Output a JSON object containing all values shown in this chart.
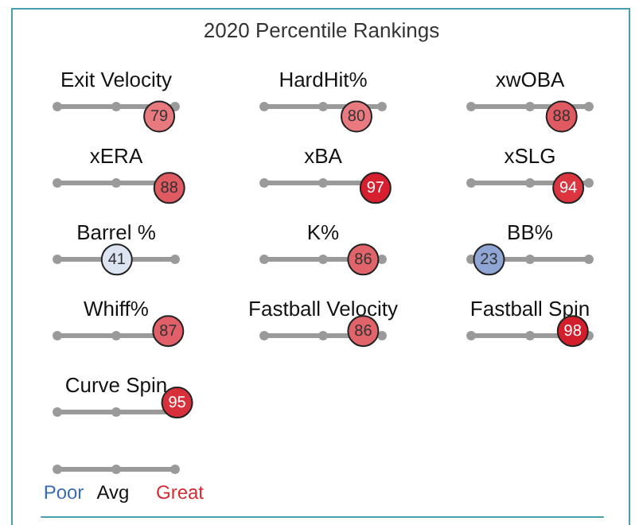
{
  "chart_data": {
    "type": "other",
    "title": "2020 Percentile Rankings",
    "categories": [
      "Exit Velocity",
      "HardHit%",
      "xwOBA",
      "xERA",
      "xBA",
      "xSLG",
      "Barrel %",
      "K%",
      "BB%",
      "Whiff%",
      "Fastball Velocity",
      "Fastball Spin",
      "Curve Spin"
    ],
    "values": [
      79,
      80,
      88,
      88,
      97,
      94,
      41,
      86,
      23,
      87,
      86,
      98,
      95
    ],
    "colors": [
      "#e8797e",
      "#e97b80",
      "#e05a61",
      "#e05a61",
      "#d6202f",
      "#db3540",
      "#dce4f1",
      "#e2646b",
      "#8fa6d4",
      "#e15f66",
      "#e2646b",
      "#d31f2c",
      "#d8303b"
    ],
    "data_labels": true,
    "annotations": [
      "Poor",
      "Avg",
      "Great"
    ]
  }
}
